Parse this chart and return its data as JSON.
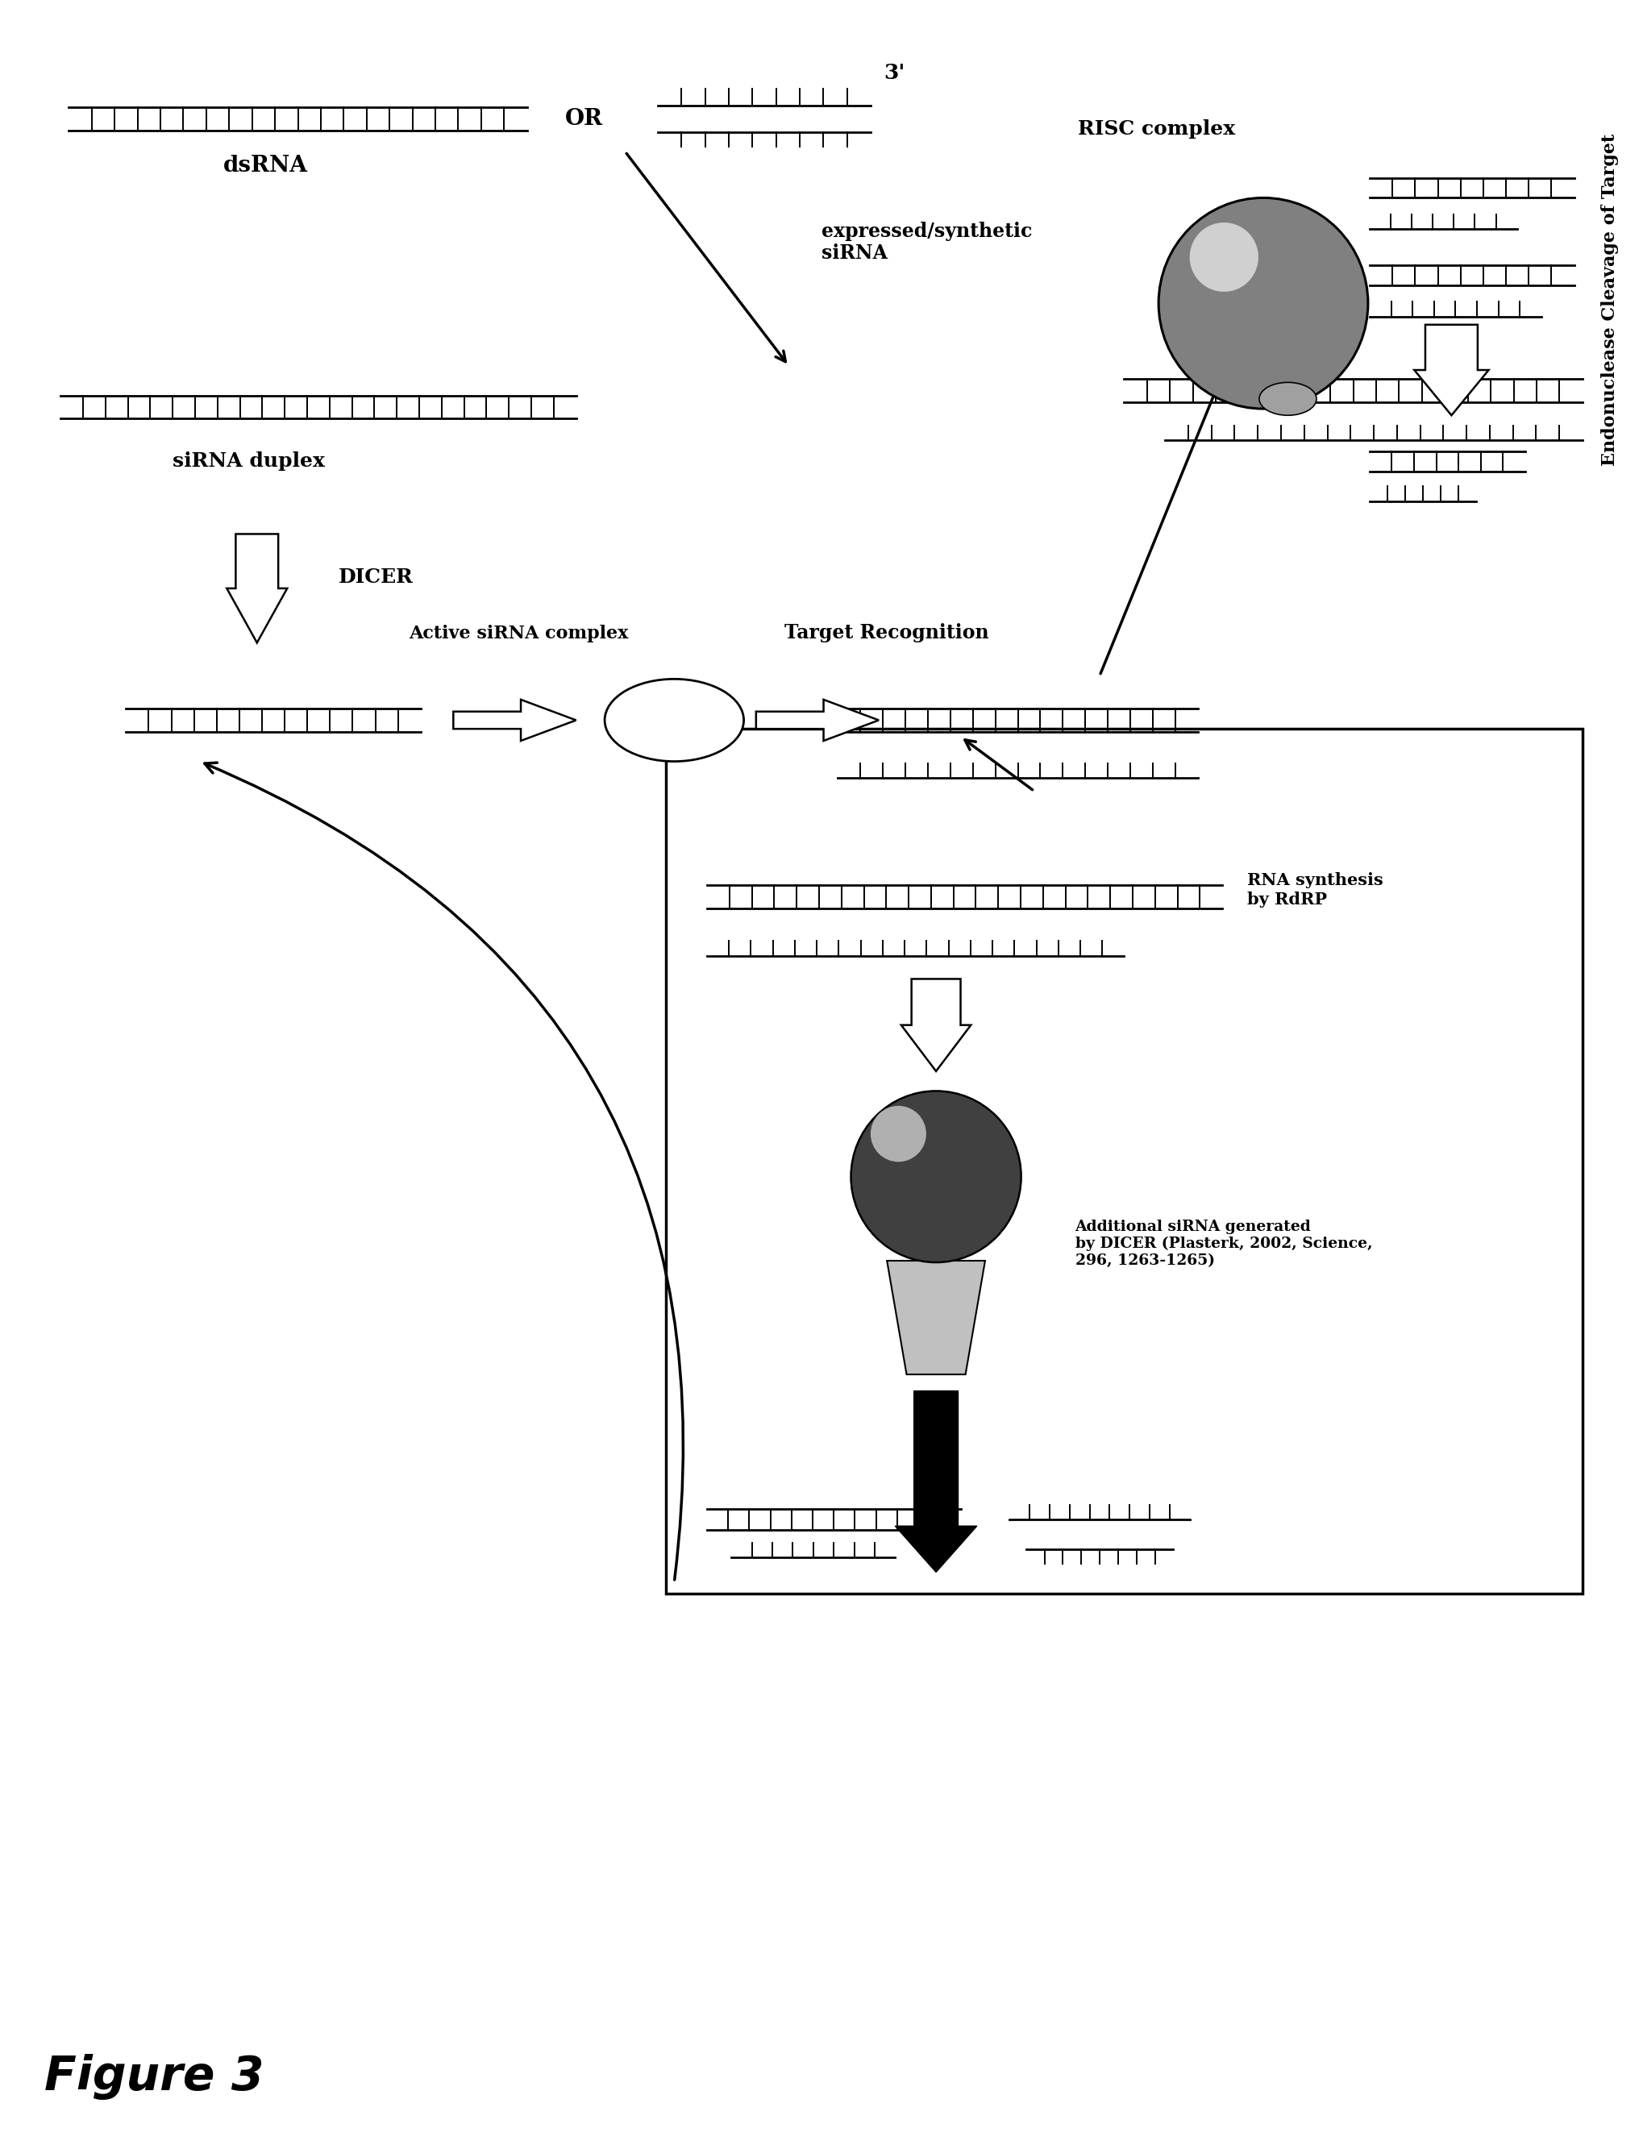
{
  "bg_color": "#ffffff",
  "black": "#000000",
  "gray_dark": "#404040",
  "gray_mid": "#808080",
  "gray_light": "#c0c0c0",
  "figure_label": "Figure 3",
  "label_dsRNA": "dsRNA",
  "label_OR": "OR",
  "label_3prime": "3'",
  "label_expressed": "expressed/synthetic\nsiRNA",
  "label_DICER": "DICER",
  "label_siRNA_duplex": "siRNA duplex",
  "label_active": "Active siRNA complex",
  "label_target_recog": "Target Recognition",
  "label_RISC": "RISC complex",
  "label_endonuclease": "Endonuclease Cleavage of Target",
  "label_RNA_synthesis": "RNA synthesis\nby RdRP",
  "label_additional": "Additional siRNA generated\nby DICER (Plasterk, 2002, Science,\n296, 1263-1265)"
}
